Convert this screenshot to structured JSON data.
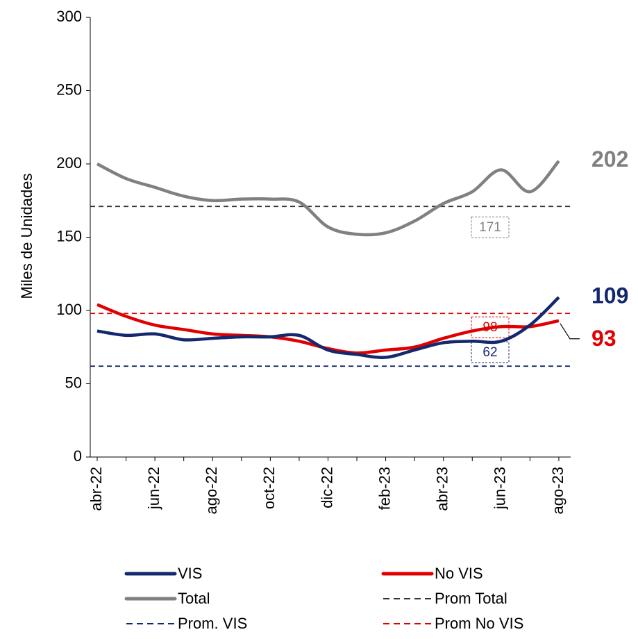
{
  "chart_data": {
    "type": "line",
    "y_label": "Miles de Unidades",
    "categories": [
      "abr-22",
      null,
      "jun-22",
      null,
      "ago-22",
      null,
      "oct-22",
      null,
      "dic-22",
      null,
      "feb-23",
      null,
      "abr-23",
      null,
      "jun-23",
      null,
      "ago-23"
    ],
    "series": [
      {
        "name": "VIS",
        "color": "#14286e",
        "values": [
          86,
          83,
          84,
          80,
          81,
          82,
          82,
          83,
          73,
          70,
          68,
          73,
          78,
          79,
          79,
          90,
          109
        ]
      },
      {
        "name": "No VIS",
        "color": "#e00000",
        "values": [
          104,
          96,
          90,
          87,
          84,
          83,
          82,
          79,
          74,
          71,
          73,
          75,
          81,
          86,
          89,
          89,
          93
        ]
      },
      {
        "name": "Total",
        "color": "#808080",
        "values": [
          200,
          190,
          184,
          178,
          175,
          176,
          176,
          174,
          157,
          152,
          153,
          161,
          173,
          181,
          196,
          181,
          202
        ]
      }
    ],
    "reference_lines": [
      {
        "name": "Prom Total",
        "value": 171,
        "color": "#333333",
        "label_color": "#808080"
      },
      {
        "name": "Prom. VIS",
        "value": 62,
        "color": "#14286e",
        "label_color": "#14286e"
      },
      {
        "name": "Prom No VIS",
        "value": 98,
        "color": "#e00000",
        "label_color": "#e00000"
      }
    ],
    "ylim": [
      0,
      300
    ],
    "yticks": [
      0,
      50,
      100,
      150,
      200,
      250,
      300
    ]
  }
}
